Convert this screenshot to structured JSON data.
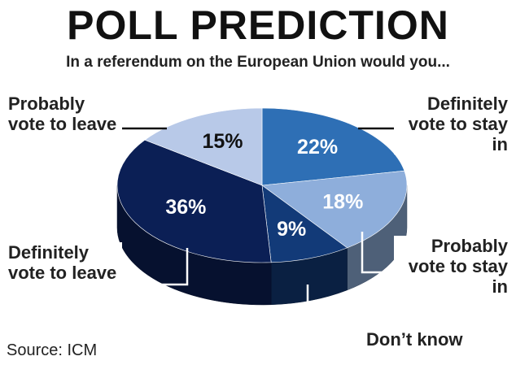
{
  "chart_data": {
    "type": "pie",
    "title": "POLL PREDICTION",
    "subtitle": "In a referendum on the European Union would you...",
    "source": "Source: ICM",
    "categories": [
      "Definitely vote to stay in",
      "Probably vote to stay in",
      "Don’t know",
      "Definitely vote to leave",
      "Probably vote to leave"
    ],
    "values": [
      22,
      18,
      9,
      36,
      15
    ],
    "value_labels": [
      "22%",
      "18%",
      "9%",
      "36%",
      "15%"
    ],
    "colors": [
      "#2e6fb5",
      "#8eaedb",
      "#123a78",
      "#0b1f55",
      "#b8c9e8"
    ]
  }
}
